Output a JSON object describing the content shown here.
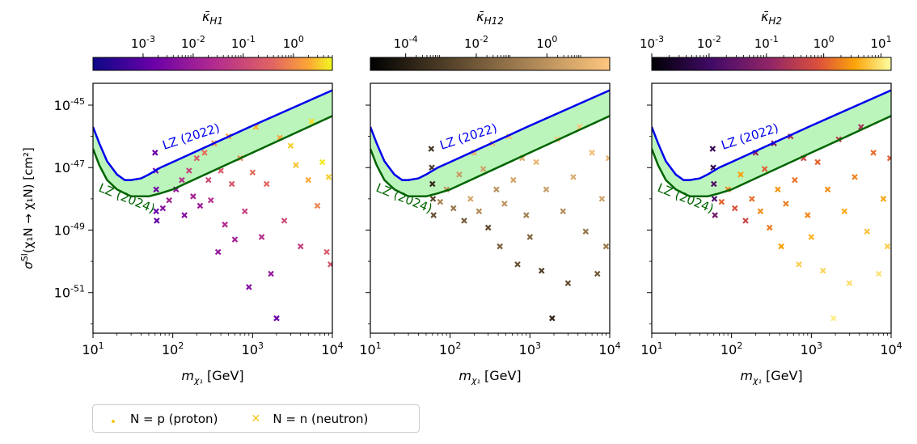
{
  "chart_data": [
    {
      "type": "scatter",
      "panel": "left",
      "colorbar": {
        "label": "κ̄_H1",
        "scale": "log",
        "range": [
          0.0001,
          6
        ],
        "ticks": [
          "10^-3",
          "10^-2",
          "10^-1",
          "10^0"
        ],
        "colormap": "plasma"
      },
      "xlabel": "m_χ1 [GeV]",
      "ylabel": "σ^SI(χ1 N → χ1 N) [cm²]",
      "xscale": "log",
      "yscale": "log",
      "xlim": [
        10,
        10000
      ],
      "ylim": [
        5e-53,
        5e-45
      ],
      "xticks": [
        "10^1",
        "10^2",
        "10^3",
        "10^4"
      ],
      "yticks": [
        "10^-45",
        "10^-47",
        "10^-49",
        "10^-51"
      ],
      "curves": [
        {
          "name": "LZ (2022)",
          "color": "#0000ee",
          "x": [
            10,
            12,
            15,
            20,
            25,
            30,
            40,
            50,
            70,
            100,
            1000,
            10000
          ],
          "y": [
            2e-46,
            6e-47,
            1.6e-47,
            6e-48,
            4e-48,
            4e-48,
            4.5e-48,
            6e-48,
            1e-47,
            1.5e-47,
            2.2e-46,
            3e-45
          ]
        },
        {
          "name": "LZ (2024)",
          "color": "#006400",
          "x": [
            10,
            12,
            15,
            20,
            25,
            30,
            40,
            50,
            70,
            100,
            1000,
            10000
          ],
          "y": [
            4e-47,
            1.2e-47,
            4e-48,
            2e-48,
            1.5e-48,
            1.2e-48,
            1.2e-48,
            1.2e-48,
            1.5e-48,
            2e-48,
            3e-47,
            4.5e-46
          ]
        }
      ],
      "points": [
        {
          "mass": 60,
          "sigma": 3e-47,
          "kappa": 0.001
        },
        {
          "mass": 61,
          "sigma": 8e-48,
          "kappa": 0.001
        },
        {
          "mass": 62,
          "sigma": 2e-48,
          "kappa": 0.001
        },
        {
          "mass": 62,
          "sigma": 4e-49,
          "kappa": 0.0008
        },
        {
          "mass": 63,
          "sigma": 2e-49,
          "kappa": 0.0007
        },
        {
          "mass": 75,
          "sigma": 5e-49,
          "kappa": 0.002
        },
        {
          "mass": 90,
          "sigma": 9e-49,
          "kappa": 0.005
        },
        {
          "mass": 110,
          "sigma": 2e-48,
          "kappa": 0.003
        },
        {
          "mass": 130,
          "sigma": 4e-48,
          "kappa": 0.01
        },
        {
          "mass": 140,
          "sigma": 3e-49,
          "kappa": 0.002
        },
        {
          "mass": 160,
          "sigma": 8e-48,
          "kappa": 0.02
        },
        {
          "mass": 180,
          "sigma": 1.2e-48,
          "kappa": 0.006
        },
        {
          "mass": 200,
          "sigma": 2e-47,
          "kappa": 0.05
        },
        {
          "mass": 220,
          "sigma": 6e-49,
          "kappa": 0.004
        },
        {
          "mass": 250,
          "sigma": 3e-47,
          "kappa": 0.1
        },
        {
          "mass": 280,
          "sigma": 4e-48,
          "kappa": 0.03
        },
        {
          "mass": 300,
          "sigma": 9e-49,
          "kappa": 0.01
        },
        {
          "mass": 330,
          "sigma": 6e-47,
          "kappa": 0.3
        },
        {
          "mass": 370,
          "sigma": 2e-50,
          "kappa": 0.003
        },
        {
          "mass": 400,
          "sigma": 8e-48,
          "kappa": 0.05
        },
        {
          "mass": 450,
          "sigma": 1.5e-49,
          "kappa": 0.008
        },
        {
          "mass": 500,
          "sigma": 1e-46,
          "kappa": 0.5
        },
        {
          "mass": 550,
          "sigma": 3e-48,
          "kappa": 0.04
        },
        {
          "mass": 600,
          "sigma": 5e-50,
          "kappa": 0.005
        },
        {
          "mass": 700,
          "sigma": 2e-47,
          "kappa": 0.2
        },
        {
          "mass": 800,
          "sigma": 4e-49,
          "kappa": 0.02
        },
        {
          "mass": 900,
          "sigma": 1.5e-51,
          "kappa": 0.002
        },
        {
          "mass": 1000,
          "sigma": 7e-48,
          "kappa": 0.1
        },
        {
          "mass": 1100,
          "sigma": 2e-46,
          "kappa": 1
        },
        {
          "mass": 1300,
          "sigma": 6e-50,
          "kappa": 0.01
        },
        {
          "mass": 1500,
          "sigma": 3e-48,
          "kappa": 0.08
        },
        {
          "mass": 1700,
          "sigma": 4e-51,
          "kappa": 0.003
        },
        {
          "mass": 2000,
          "sigma": 1.5e-52,
          "kappa": 0.001
        },
        {
          "mass": 2200,
          "sigma": 9e-47,
          "kappa": 0.6
        },
        {
          "mass": 2500,
          "sigma": 2e-49,
          "kappa": 0.03
        },
        {
          "mass": 3000,
          "sigma": 5e-47,
          "kappa": 2
        },
        {
          "mass": 3500,
          "sigma": 1.2e-47,
          "kappa": 1.5
        },
        {
          "mass": 4000,
          "sigma": 3e-50,
          "kappa": 0.02
        },
        {
          "mass": 5000,
          "sigma": 4e-48,
          "kappa": 0.7
        },
        {
          "mass": 5500,
          "sigma": 3e-46,
          "kappa": 3
        },
        {
          "mass": 6500,
          "sigma": 6e-49,
          "kappa": 0.2
        },
        {
          "mass": 7500,
          "sigma": 1.5e-47,
          "kappa": 4
        },
        {
          "mass": 8500,
          "sigma": 2e-50,
          "kappa": 0.05
        },
        {
          "mass": 9500,
          "sigma": 8e-51,
          "kappa": 0.04
        },
        {
          "mass": 9000,
          "sigma": 5e-48,
          "kappa": 2
        }
      ]
    },
    {
      "type": "scatter",
      "panel": "middle",
      "colorbar": {
        "label": "κ̄_H12",
        "scale": "log",
        "range": [
          1e-05,
          60
        ],
        "ticks": [
          "10^-4",
          "10^-2",
          "10^0"
        ],
        "colormap": "copper"
      },
      "xlabel": "m_χ1 [GeV]",
      "xscale": "log",
      "yscale": "log",
      "xlim": [
        10,
        10000
      ],
      "ylim": [
        5e-53,
        5e-45
      ],
      "xticks": [
        "10^1",
        "10^2",
        "10^3",
        "10^4"
      ],
      "curves": [
        {
          "name": "LZ (2022)",
          "color": "#0000ee",
          "x": [
            10,
            12,
            15,
            20,
            25,
            30,
            40,
            50,
            70,
            100,
            1000,
            10000
          ],
          "y": [
            2e-46,
            6e-47,
            1.6e-47,
            6e-48,
            4e-48,
            4e-48,
            4.5e-48,
            6e-48,
            1e-47,
            1.5e-47,
            2.2e-46,
            3e-45
          ]
        },
        {
          "name": "LZ (2024)",
          "color": "#006400",
          "x": [
            10,
            12,
            15,
            20,
            25,
            30,
            40,
            50,
            70,
            100,
            1000,
            10000
          ],
          "y": [
            4e-47,
            1.2e-47,
            4e-48,
            2e-48,
            1.5e-48,
            1.2e-48,
            1.2e-48,
            1.2e-48,
            1.5e-48,
            2e-48,
            3e-47,
            4.5e-46
          ]
        }
      ],
      "points": [
        {
          "mass": 58,
          "sigma": 4e-47,
          "kappa": 0.0005
        },
        {
          "mass": 59,
          "sigma": 1e-47,
          "kappa": 0.001
        },
        {
          "mass": 60,
          "sigma": 3e-48,
          "kappa": 0.0003
        },
        {
          "mass": 61,
          "sigma": 1e-48,
          "kappa": 0.002
        },
        {
          "mass": 62,
          "sigma": 3e-49,
          "kappa": 0.005
        },
        {
          "mass": 75,
          "sigma": 8e-49,
          "kappa": 0.3
        },
        {
          "mass": 90,
          "sigma": 2e-48,
          "kappa": 1
        },
        {
          "mass": 110,
          "sigma": 5e-49,
          "kappa": 0.1
        },
        {
          "mass": 130,
          "sigma": 6e-48,
          "kappa": 2
        },
        {
          "mass": 150,
          "sigma": 2e-49,
          "kappa": 0.01
        },
        {
          "mass": 180,
          "sigma": 1e-48,
          "kappa": 5
        },
        {
          "mass": 200,
          "sigma": 3e-47,
          "kappa": 10
        },
        {
          "mass": 230,
          "sigma": 4e-49,
          "kappa": 0.5
        },
        {
          "mass": 260,
          "sigma": 9e-48,
          "kappa": 3
        },
        {
          "mass": 300,
          "sigma": 1.2e-49,
          "kappa": 0.003
        },
        {
          "mass": 340,
          "sigma": 6e-47,
          "kappa": 20
        },
        {
          "mass": 380,
          "sigma": 2e-48,
          "kappa": 0.8
        },
        {
          "mass": 420,
          "sigma": 3e-50,
          "kappa": 0.02
        },
        {
          "mass": 480,
          "sigma": 7e-49,
          "kappa": 1
        },
        {
          "mass": 550,
          "sigma": 1e-46,
          "kappa": 30
        },
        {
          "mass": 620,
          "sigma": 4e-48,
          "kappa": 4
        },
        {
          "mass": 700,
          "sigma": 8e-51,
          "kappa": 0.005
        },
        {
          "mass": 800,
          "sigma": 2e-47,
          "kappa": 8
        },
        {
          "mass": 900,
          "sigma": 3e-49,
          "kappa": 0.2
        },
        {
          "mass": 1000,
          "sigma": 6e-50,
          "kappa": 0.03
        },
        {
          "mass": 1200,
          "sigma": 1.5e-47,
          "kappa": 15
        },
        {
          "mass": 1400,
          "sigma": 5e-51,
          "kappa": 0.001
        },
        {
          "mass": 1600,
          "sigma": 2e-48,
          "kappa": 2
        },
        {
          "mass": 1900,
          "sigma": 1.5e-52,
          "kappa": 0.0002
        },
        {
          "mass": 2200,
          "sigma": 8e-47,
          "kappa": 40
        },
        {
          "mass": 2600,
          "sigma": 4e-49,
          "kappa": 0.6
        },
        {
          "mass": 3000,
          "sigma": 2e-51,
          "kappa": 0.004
        },
        {
          "mass": 3500,
          "sigma": 5e-48,
          "kappa": 6
        },
        {
          "mass": 4200,
          "sigma": 2e-46,
          "kappa": 50
        },
        {
          "mass": 5000,
          "sigma": 9e-50,
          "kappa": 0.08
        },
        {
          "mass": 6000,
          "sigma": 3e-47,
          "kappa": 25
        },
        {
          "mass": 7000,
          "sigma": 4e-51,
          "kappa": 0.01
        },
        {
          "mass": 8000,
          "sigma": 1e-48,
          "kappa": 3
        },
        {
          "mass": 9000,
          "sigma": 3e-50,
          "kappa": 0.15
        },
        {
          "mass": 9700,
          "sigma": 2e-47,
          "kappa": 12
        }
      ]
    },
    {
      "type": "scatter",
      "panel": "right",
      "colorbar": {
        "label": "κ̄_H2",
        "scale": "log",
        "range": [
          0.001,
          15
        ],
        "ticks": [
          "10^-3",
          "10^-2",
          "10^-1",
          "10^0",
          "10^1"
        ],
        "colormap": "inferno"
      },
      "xlabel": "m_χ1 [GeV]",
      "xscale": "log",
      "yscale": "log",
      "xlim": [
        10,
        10000
      ],
      "ylim": [
        5e-53,
        5e-45
      ],
      "xticks": [
        "10^1",
        "10^2",
        "10^3",
        "10^4"
      ],
      "curves": [
        {
          "name": "LZ (2022)",
          "color": "#0000ee",
          "x": [
            10,
            12,
            15,
            20,
            25,
            30,
            40,
            50,
            70,
            100,
            1000,
            10000
          ],
          "y": [
            2e-46,
            6e-47,
            1.6e-47,
            6e-48,
            4e-48,
            4e-48,
            4.5e-48,
            6e-48,
            1e-47,
            1.5e-47,
            2.2e-46,
            3e-45
          ]
        },
        {
          "name": "LZ (2024)",
          "color": "#006400",
          "x": [
            10,
            12,
            15,
            20,
            25,
            30,
            40,
            50,
            70,
            100,
            1000,
            10000
          ],
          "y": [
            4e-47,
            1.2e-47,
            4e-48,
            2e-48,
            1.5e-48,
            1.2e-48,
            1.2e-48,
            1.2e-48,
            1.5e-48,
            2e-48,
            3e-47,
            4.5e-46
          ]
        }
      ],
      "points": [
        {
          "mass": 58,
          "sigma": 4e-47,
          "kappa": 0.005
        },
        {
          "mass": 59,
          "sigma": 1e-47,
          "kappa": 0.004
        },
        {
          "mass": 60,
          "sigma": 3e-48,
          "kappa": 0.01
        },
        {
          "mass": 61,
          "sigma": 1e-48,
          "kappa": 0.008
        },
        {
          "mass": 62,
          "sigma": 3e-49,
          "kappa": 0.02
        },
        {
          "mass": 75,
          "sigma": 8e-49,
          "kappa": 0.5
        },
        {
          "mass": 90,
          "sigma": 2e-48,
          "kappa": 1
        },
        {
          "mass": 110,
          "sigma": 5e-49,
          "kappa": 0.3
        },
        {
          "mass": 130,
          "sigma": 6e-48,
          "kappa": 2
        },
        {
          "mass": 150,
          "sigma": 2e-49,
          "kappa": 0.2
        },
        {
          "mass": 180,
          "sigma": 1e-48,
          "kappa": 0.6
        },
        {
          "mass": 200,
          "sigma": 3e-47,
          "kappa": 0.05
        },
        {
          "mass": 230,
          "sigma": 4e-49,
          "kappa": 1.2
        },
        {
          "mass": 260,
          "sigma": 9e-48,
          "kappa": 0.4
        },
        {
          "mass": 300,
          "sigma": 1.2e-49,
          "kappa": 0.8
        },
        {
          "mass": 340,
          "sigma": 6e-47,
          "kappa": 0.03
        },
        {
          "mass": 380,
          "sigma": 2e-48,
          "kappa": 1.5
        },
        {
          "mass": 420,
          "sigma": 3e-50,
          "kappa": 2
        },
        {
          "mass": 480,
          "sigma": 7e-49,
          "kappa": 0.9
        },
        {
          "mass": 550,
          "sigma": 1e-46,
          "kappa": 0.1
        },
        {
          "mass": 620,
          "sigma": 4e-48,
          "kappa": 0.7
        },
        {
          "mass": 700,
          "sigma": 8e-51,
          "kappa": 5
        },
        {
          "mass": 800,
          "sigma": 2e-47,
          "kappa": 0.2
        },
        {
          "mass": 900,
          "sigma": 3e-49,
          "kappa": 1.1
        },
        {
          "mass": 1000,
          "sigma": 6e-50,
          "kappa": 3
        },
        {
          "mass": 1200,
          "sigma": 1.5e-47,
          "kappa": 0.5
        },
        {
          "mass": 1400,
          "sigma": 5e-51,
          "kappa": 6
        },
        {
          "mass": 1600,
          "sigma": 2e-48,
          "kappa": 1.3
        },
        {
          "mass": 1900,
          "sigma": 1.5e-52,
          "kappa": 10
        },
        {
          "mass": 2200,
          "sigma": 8e-47,
          "kappa": 0.15
        },
        {
          "mass": 2600,
          "sigma": 4e-49,
          "kappa": 2.5
        },
        {
          "mass": 3000,
          "sigma": 2e-51,
          "kappa": 7
        },
        {
          "mass": 3500,
          "sigma": 5e-48,
          "kappa": 1
        },
        {
          "mass": 4200,
          "sigma": 2e-46,
          "kappa": 0.08
        },
        {
          "mass": 5000,
          "sigma": 9e-50,
          "kappa": 4
        },
        {
          "mass": 6000,
          "sigma": 3e-47,
          "kappa": 0.6
        },
        {
          "mass": 7000,
          "sigma": 4e-51,
          "kappa": 8
        },
        {
          "mass": 8000,
          "sigma": 1e-48,
          "kappa": 2
        },
        {
          "mass": 9000,
          "sigma": 3e-50,
          "kappa": 5
        },
        {
          "mass": 9700,
          "sigma": 2e-47,
          "kappa": 0.4
        }
      ]
    }
  ],
  "legend": {
    "placement": "bottom-left",
    "items": [
      {
        "label": "N = p (proton)",
        "marker": "dot",
        "color": "#f5c518"
      },
      {
        "label": "N = n (neutron)",
        "marker": "x",
        "color": "#f5c518"
      }
    ]
  },
  "colors": {
    "lz2022": "#0000ee",
    "lz2024": "#006400",
    "band": "#90ee90"
  }
}
